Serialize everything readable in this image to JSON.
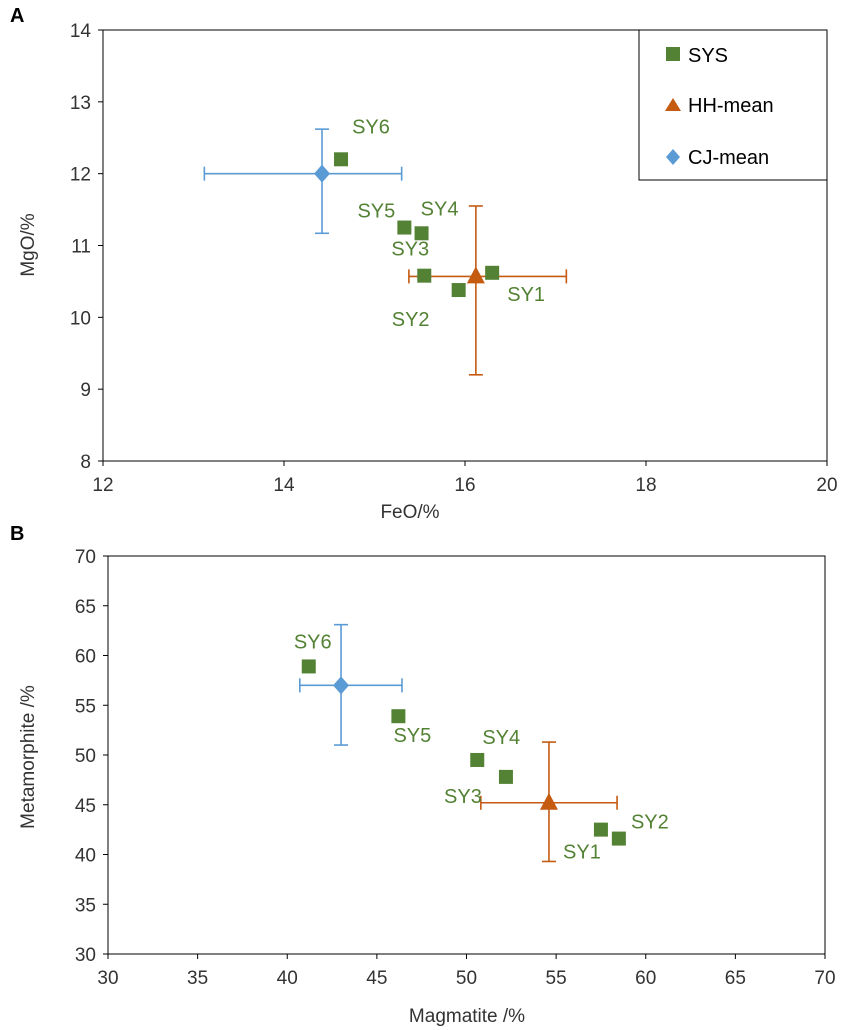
{
  "colors": {
    "sys": "#548235",
    "hh": "#c55a11",
    "cj": "#5b9bd5",
    "axis": "#000000",
    "tick_text": "#333333"
  },
  "legend": {
    "items": [
      {
        "label": "SYS",
        "marker": "square",
        "color": "#548235"
      },
      {
        "label": "HH-mean",
        "marker": "triangle",
        "color": "#c55a11"
      },
      {
        "label": "CJ-mean",
        "marker": "diamond",
        "color": "#5b9bd5"
      }
    ]
  },
  "chart_data": [
    {
      "panel_label": "A",
      "type": "scatter",
      "xlabel": "FeO/%",
      "ylabel": "MgO/%",
      "xlim": [
        12,
        20
      ],
      "ylim": [
        8,
        14
      ],
      "xticks": [
        12,
        14,
        16,
        18,
        20
      ],
      "yticks": [
        8,
        9,
        10,
        11,
        12,
        13,
        14
      ],
      "grid": false,
      "legend_position": "top-right",
      "series": [
        {
          "name": "SYS",
          "marker": "square",
          "points": [
            {
              "label": "SY1",
              "x": 16.3,
              "y": 10.62
            },
            {
              "label": "SY2",
              "x": 15.93,
              "y": 10.38
            },
            {
              "label": "SY3",
              "x": 15.55,
              "y": 10.58
            },
            {
              "label": "SY4",
              "x": 15.52,
              "y": 11.17
            },
            {
              "label": "SY5",
              "x": 15.33,
              "y": 11.25
            },
            {
              "label": "SY6",
              "x": 14.63,
              "y": 12.2
            }
          ]
        },
        {
          "name": "HH-mean",
          "marker": "triangle",
          "points": [
            {
              "x": 16.12,
              "y": 10.57,
              "xerr": [
                15.38,
                17.12
              ],
              "yerr": [
                9.2,
                11.55
              ]
            }
          ]
        },
        {
          "name": "CJ-mean",
          "marker": "diamond",
          "points": [
            {
              "x": 14.42,
              "y": 12.0,
              "xerr": [
                13.12,
                15.3
              ],
              "yerr": [
                11.17,
                12.62
              ]
            }
          ]
        }
      ]
    },
    {
      "panel_label": "B",
      "type": "scatter",
      "xlabel": "Magmatite /%",
      "ylabel": "Metamorphite /%",
      "xlim": [
        30,
        70
      ],
      "ylim": [
        30,
        70
      ],
      "xticks": [
        30,
        35,
        40,
        45,
        50,
        55,
        60,
        65,
        70
      ],
      "yticks": [
        30,
        35,
        40,
        45,
        50,
        55,
        60,
        65,
        70
      ],
      "grid": false,
      "series": [
        {
          "name": "SYS",
          "marker": "square",
          "points": [
            {
              "label": "SY1",
              "x": 57.5,
              "y": 42.5
            },
            {
              "label": "SY2",
              "x": 58.5,
              "y": 41.6
            },
            {
              "label": "SY3",
              "x": 52.2,
              "y": 47.8
            },
            {
              "label": "SY4",
              "x": 50.6,
              "y": 49.5
            },
            {
              "label": "SY5",
              "x": 46.2,
              "y": 53.9
            },
            {
              "label": "SY6",
              "x": 41.2,
              "y": 58.9
            }
          ]
        },
        {
          "name": "HH-mean",
          "marker": "triangle",
          "points": [
            {
              "x": 54.6,
              "y": 45.2,
              "xerr": [
                50.8,
                58.4
              ],
              "yerr": [
                39.3,
                51.3
              ]
            }
          ]
        },
        {
          "name": "CJ-mean",
          "marker": "diamond",
          "points": [
            {
              "x": 43.0,
              "y": 57.0,
              "xerr": [
                40.7,
                46.4
              ],
              "yerr": [
                51.0,
                63.1
              ]
            }
          ]
        }
      ]
    }
  ]
}
